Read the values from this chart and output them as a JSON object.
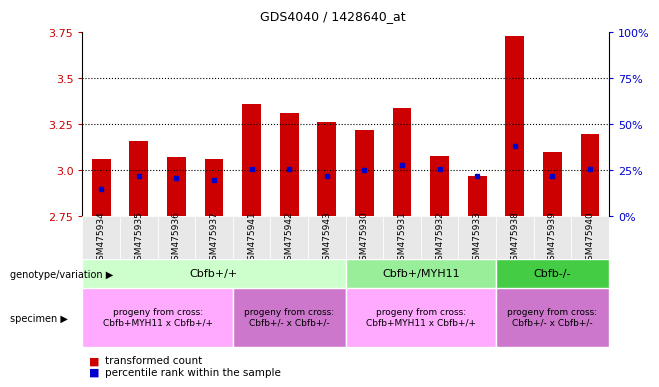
{
  "title": "GDS4040 / 1428640_at",
  "samples": [
    "GSM475934",
    "GSM475935",
    "GSM475936",
    "GSM475937",
    "GSM475941",
    "GSM475942",
    "GSM475943",
    "GSM475930",
    "GSM475931",
    "GSM475932",
    "GSM475933",
    "GSM475938",
    "GSM475939",
    "GSM475940"
  ],
  "red_values": [
    3.06,
    3.16,
    3.07,
    3.06,
    3.36,
    3.31,
    3.26,
    3.22,
    3.34,
    3.08,
    2.97,
    3.73,
    3.1,
    3.2
  ],
  "blue_values": [
    2.9,
    2.97,
    2.96,
    2.95,
    3.01,
    3.01,
    2.97,
    3.0,
    3.03,
    3.01,
    2.97,
    3.13,
    2.97,
    3.01
  ],
  "y_min": 2.75,
  "y_max": 3.75,
  "y_ticks": [
    2.75,
    3.0,
    3.25,
    3.5,
    3.75
  ],
  "y2_ticks": [
    0,
    25,
    50,
    75,
    100
  ],
  "genotype_groups": [
    {
      "label": "Cbfb+/+",
      "start": 0,
      "end": 7,
      "color": "#ccffcc"
    },
    {
      "label": "Cbfb+/MYH11",
      "start": 7,
      "end": 11,
      "color": "#99ee99"
    },
    {
      "label": "Cbfb-/-",
      "start": 11,
      "end": 14,
      "color": "#44cc44"
    }
  ],
  "specimen_groups": [
    {
      "label": "progeny from cross:\nCbfb+MYH11 x Cbfb+/+",
      "start": 0,
      "end": 4,
      "color": "#ffaaff"
    },
    {
      "label": "progeny from cross:\nCbfb+/- x Cbfb+/-",
      "start": 4,
      "end": 7,
      "color": "#cc77cc"
    },
    {
      "label": "progeny from cross:\nCbfb+MYH11 x Cbfb+/+",
      "start": 7,
      "end": 11,
      "color": "#ffaaff"
    },
    {
      "label": "progeny from cross:\nCbfb+/- x Cbfb+/-",
      "start": 11,
      "end": 14,
      "color": "#cc77cc"
    }
  ],
  "bar_color": "#cc0000",
  "dot_color": "#0000cc",
  "bar_width": 0.5,
  "tick_color": "#cc0000",
  "y2_tick_color": "#0000cc",
  "bg_color": "#e8e8e8"
}
